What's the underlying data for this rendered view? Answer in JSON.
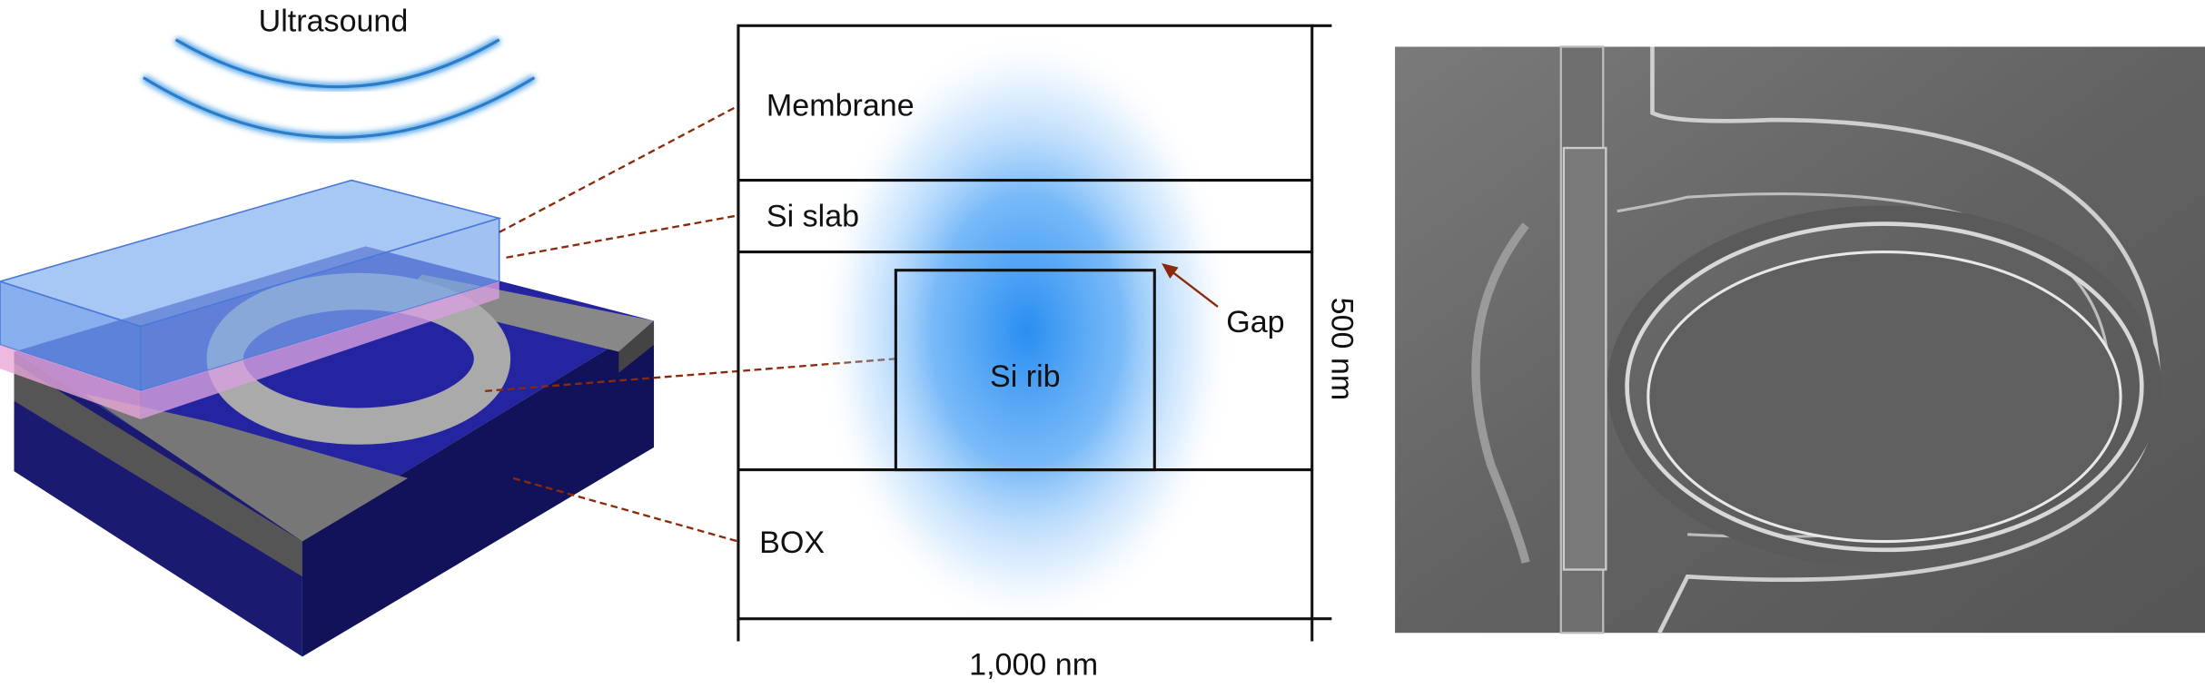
{
  "device_view": {
    "label": "Ultrasound"
  },
  "cross_section": {
    "layers": [
      "Membrane",
      "Si slab",
      "Si rib",
      "BOX"
    ],
    "gap_label": "Gap",
    "height_label": "500 nm",
    "width_label": "1,000 nm"
  }
}
